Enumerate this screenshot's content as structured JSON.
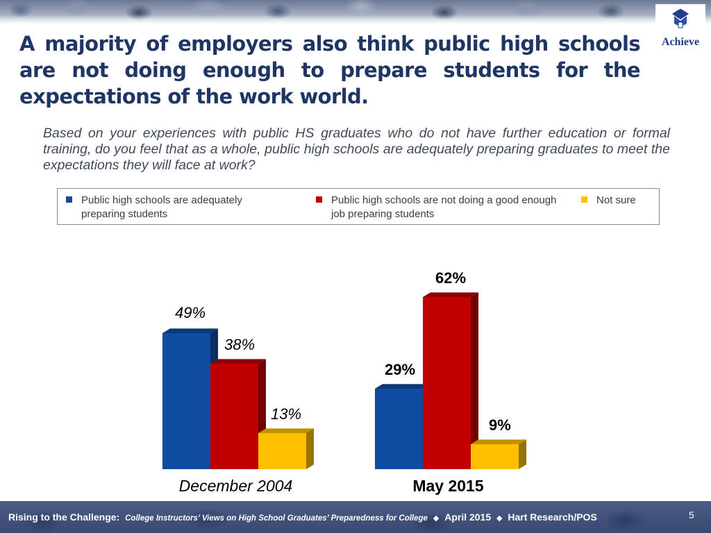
{
  "slide": {
    "title": "A majority of employers also think public high schools are not doing enough to prepare students for the expectations of the work world.",
    "question": "Based on your experiences with public HS graduates who do not have further education or formal training, do you feel that as a whole, public high schools are adequately preparing graduates to meet the expectations they will face at work?",
    "logo_text": "Achieve",
    "page_number": "5"
  },
  "footer": {
    "lead": "Rising to the Challenge:",
    "report": "College Instructors’ Views on High School Graduates’ Preparedness for College",
    "separator": "◆",
    "date": "April 2015",
    "source": "Hart Research/POS"
  },
  "colors": {
    "title": "#1f3566",
    "blue": "#0f4ba0",
    "red": "#c00000",
    "yellow": "#ffc000",
    "footer_bg": "#3a4a70"
  },
  "chart_data": {
    "type": "bar",
    "categories": [
      "December 2004",
      "May 2015"
    ],
    "series": [
      {
        "name": "Public high schools are adequately preparing students",
        "color": "#0f4ba0",
        "values": [
          49,
          29
        ],
        "labels": [
          "49%",
          "29%"
        ]
      },
      {
        "name": "Public high schools are not doing a good enough job preparing students",
        "color": "#c00000",
        "values": [
          38,
          62
        ],
        "labels": [
          "38%",
          "62%"
        ]
      },
      {
        "name": "Not sure",
        "color": "#ffc000",
        "values": [
          13,
          9
        ],
        "labels": [
          "13%",
          "9%"
        ]
      }
    ],
    "unit": "%",
    "ylim": [
      0,
      70
    ],
    "grid": false,
    "legend_position": "top",
    "category_label_style": [
      "italic",
      "bold"
    ]
  }
}
